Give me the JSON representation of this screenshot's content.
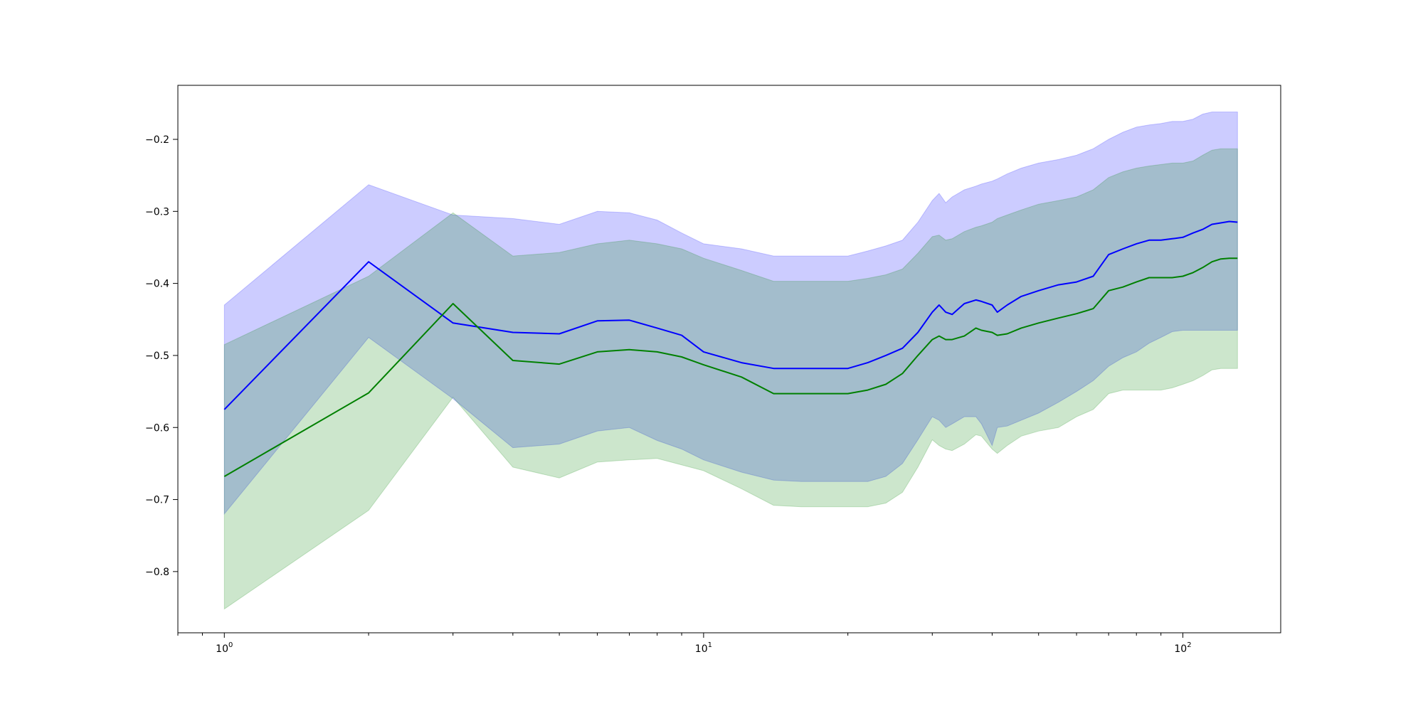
{
  "chart_data": {
    "type": "line",
    "title": "",
    "xlabel": "",
    "ylabel": "",
    "xscale": "log",
    "xlim": [
      0.8,
      160
    ],
    "ylim": [
      -0.885,
      -0.125
    ],
    "grid": false,
    "legend": "none",
    "xticks": [
      {
        "value": 1,
        "base": "10",
        "exp": "0"
      },
      {
        "value": 10,
        "base": "10",
        "exp": "1"
      },
      {
        "value": 100,
        "base": "10",
        "exp": "2"
      }
    ],
    "yticks": [
      {
        "value": -0.2,
        "label": "−0.2"
      },
      {
        "value": -0.3,
        "label": "−0.3"
      },
      {
        "value": -0.4,
        "label": "−0.4"
      },
      {
        "value": -0.5,
        "label": "−0.5"
      },
      {
        "value": -0.6,
        "label": "−0.6"
      },
      {
        "value": -0.7,
        "label": "−0.7"
      },
      {
        "value": -0.8,
        "label": "−0.8"
      }
    ],
    "series": [
      {
        "color": "#0000ff",
        "band_color": "#0000ff",
        "band_opacity": 0.2,
        "x": [
          1,
          2,
          3,
          4,
          5,
          6,
          7,
          8,
          9,
          10,
          12,
          14,
          16,
          18,
          20,
          22,
          24,
          26,
          28,
          30,
          31,
          32,
          33,
          35,
          37,
          38,
          40,
          41,
          43,
          46,
          50,
          55,
          60,
          65,
          70,
          75,
          80,
          85,
          90,
          95,
          100,
          105,
          110,
          115,
          120,
          125,
          130
        ],
        "y": [
          -0.575,
          -0.37,
          -0.455,
          -0.468,
          -0.47,
          -0.452,
          -0.451,
          -0.462,
          -0.472,
          -0.495,
          -0.51,
          -0.518,
          -0.518,
          -0.518,
          -0.518,
          -0.51,
          -0.5,
          -0.49,
          -0.468,
          -0.44,
          -0.43,
          -0.44,
          -0.443,
          -0.428,
          -0.423,
          -0.425,
          -0.43,
          -0.44,
          -0.43,
          -0.418,
          -0.41,
          -0.402,
          -0.398,
          -0.39,
          -0.36,
          -0.352,
          -0.345,
          -0.34,
          -0.34,
          -0.338,
          -0.336,
          -0.33,
          -0.325,
          -0.318,
          -0.316,
          -0.314,
          -0.315
        ],
        "lower": [
          -0.72,
          -0.475,
          -0.56,
          -0.628,
          -0.623,
          -0.605,
          -0.6,
          -0.618,
          -0.63,
          -0.645,
          -0.662,
          -0.673,
          -0.675,
          -0.675,
          -0.675,
          -0.675,
          -0.668,
          -0.65,
          -0.617,
          -0.585,
          -0.59,
          -0.6,
          -0.595,
          -0.585,
          -0.585,
          -0.595,
          -0.625,
          -0.6,
          -0.598,
          -0.59,
          -0.58,
          -0.565,
          -0.55,
          -0.535,
          -0.515,
          -0.503,
          -0.495,
          -0.483,
          -0.475,
          -0.467,
          -0.465,
          -0.465,
          -0.465,
          -0.465,
          -0.465,
          -0.465,
          -0.465
        ],
        "upper": [
          -0.43,
          -0.263,
          -0.305,
          -0.31,
          -0.318,
          -0.3,
          -0.302,
          -0.312,
          -0.33,
          -0.345,
          -0.352,
          -0.362,
          -0.362,
          -0.362,
          -0.362,
          -0.355,
          -0.348,
          -0.34,
          -0.315,
          -0.285,
          -0.275,
          -0.288,
          -0.28,
          -0.27,
          -0.265,
          -0.262,
          -0.258,
          -0.255,
          -0.248,
          -0.24,
          -0.233,
          -0.228,
          -0.222,
          -0.213,
          -0.2,
          -0.19,
          -0.183,
          -0.18,
          -0.178,
          -0.175,
          -0.175,
          -0.172,
          -0.165,
          -0.162,
          -0.162,
          -0.162,
          -0.162
        ]
      },
      {
        "color": "#008000",
        "band_color": "#008000",
        "band_opacity": 0.2,
        "x": [
          1,
          2,
          3,
          4,
          5,
          6,
          7,
          8,
          9,
          10,
          12,
          14,
          16,
          18,
          20,
          22,
          24,
          26,
          28,
          30,
          31,
          32,
          33,
          35,
          37,
          38,
          40,
          41,
          43,
          46,
          50,
          55,
          60,
          65,
          70,
          75,
          80,
          85,
          90,
          95,
          100,
          105,
          110,
          115,
          120,
          125,
          130
        ],
        "y": [
          -0.668,
          -0.552,
          -0.428,
          -0.507,
          -0.512,
          -0.495,
          -0.492,
          -0.495,
          -0.502,
          -0.513,
          -0.53,
          -0.553,
          -0.553,
          -0.553,
          -0.553,
          -0.548,
          -0.54,
          -0.525,
          -0.5,
          -0.478,
          -0.473,
          -0.478,
          -0.478,
          -0.473,
          -0.462,
          -0.465,
          -0.468,
          -0.472,
          -0.47,
          -0.462,
          -0.455,
          -0.448,
          -0.442,
          -0.435,
          -0.41,
          -0.405,
          -0.398,
          -0.392,
          -0.392,
          -0.392,
          -0.39,
          -0.385,
          -0.378,
          -0.37,
          -0.366,
          -0.365,
          -0.365
        ],
        "lower": [
          -0.852,
          -0.715,
          -0.558,
          -0.655,
          -0.67,
          -0.648,
          -0.645,
          -0.643,
          -0.652,
          -0.66,
          -0.685,
          -0.708,
          -0.71,
          -0.71,
          -0.71,
          -0.71,
          -0.705,
          -0.69,
          -0.655,
          -0.617,
          -0.625,
          -0.63,
          -0.632,
          -0.623,
          -0.61,
          -0.612,
          -0.63,
          -0.636,
          -0.625,
          -0.612,
          -0.605,
          -0.6,
          -0.585,
          -0.575,
          -0.553,
          -0.548,
          -0.548,
          -0.548,
          -0.548,
          -0.545,
          -0.54,
          -0.535,
          -0.528,
          -0.52,
          -0.518,
          -0.518,
          -0.518
        ],
        "upper": [
          -0.485,
          -0.39,
          -0.302,
          -0.362,
          -0.357,
          -0.345,
          -0.34,
          -0.345,
          -0.352,
          -0.365,
          -0.382,
          -0.397,
          -0.397,
          -0.397,
          -0.397,
          -0.393,
          -0.388,
          -0.38,
          -0.358,
          -0.335,
          -0.333,
          -0.34,
          -0.338,
          -0.328,
          -0.322,
          -0.32,
          -0.315,
          -0.31,
          -0.305,
          -0.298,
          -0.29,
          -0.285,
          -0.28,
          -0.27,
          -0.253,
          -0.245,
          -0.24,
          -0.237,
          -0.235,
          -0.233,
          -0.233,
          -0.23,
          -0.222,
          -0.215,
          -0.213,
          -0.213,
          -0.213
        ]
      }
    ]
  }
}
